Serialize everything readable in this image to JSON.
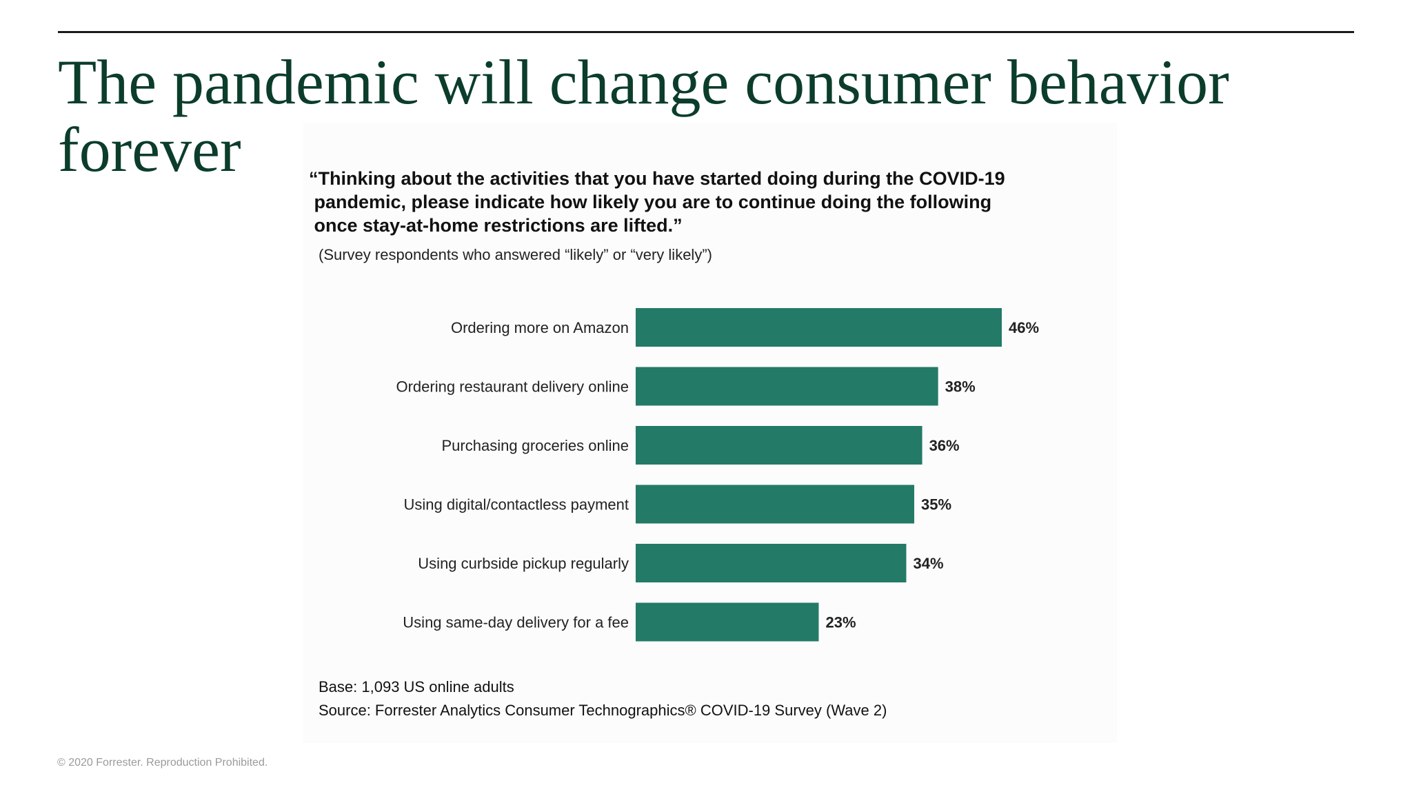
{
  "slide": {
    "title": "The pandemic will change consumer behavior forever",
    "copyright": "© 2020 Forrester. Reproduction Prohibited."
  },
  "chart": {
    "question_lines": [
      "“Thinking about the activities that you have started doing during the COVID-19",
      " pandemic, please indicate how likely you are to continue doing the following",
      " once stay-at-home restrictions are lifted.”"
    ],
    "subtitle": "(Survey respondents who answered “likely” or “very likely”)",
    "base": "Base: 1,093 US online adults",
    "source": "Source: Forrester Analytics Consumer Technographics® COVID-19 Survey (Wave 2)"
  },
  "chart_data": {
    "type": "bar",
    "orientation": "horizontal",
    "categories": [
      "Ordering more on Amazon",
      "Ordering restaurant delivery online",
      "Purchasing groceries online",
      "Using digital/contactless payment",
      "Using curbside pickup regularly",
      "Using same-day delivery for a fee"
    ],
    "values": [
      46,
      38,
      36,
      35,
      34,
      23
    ],
    "value_labels": [
      "46%",
      "38%",
      "36%",
      "35%",
      "34%",
      "23%"
    ],
    "unit": "%",
    "xlim": [
      0,
      46
    ],
    "bar_color": "#237a67",
    "grid": false,
    "legend": "none"
  }
}
